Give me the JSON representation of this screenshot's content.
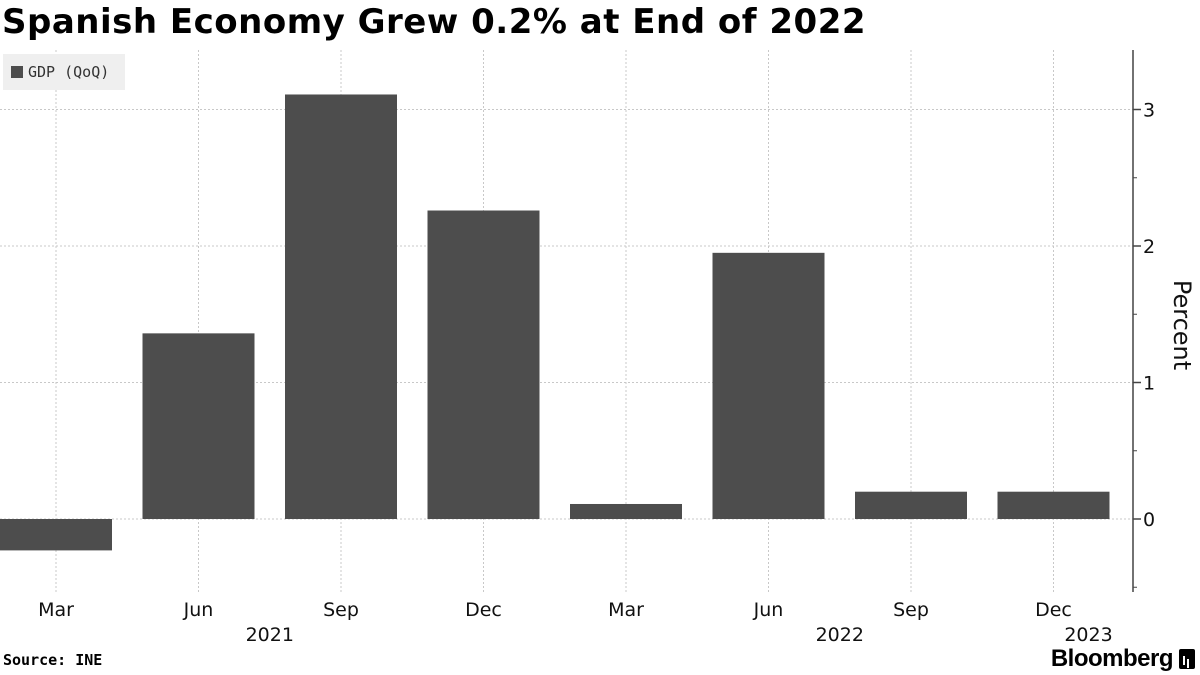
{
  "title": "Spanish Economy Grew 0.2% at End of 2022",
  "legend": {
    "label": "GDP (QoQ)"
  },
  "source": "Source: INE",
  "brand": "Bloomberg",
  "colors": {
    "bar": "#4d4d4d",
    "grid": "#c8c8c8",
    "axis": "#444444",
    "legend_bg": "#efefef"
  },
  "chart_data": {
    "type": "bar",
    "categories": [
      "Mar",
      "Jun",
      "Sep",
      "Dec",
      "Mar",
      "Jun",
      "Sep",
      "Dec"
    ],
    "year_labels": [
      {
        "label": "2021",
        "between": [
          1,
          2
        ]
      },
      {
        "label": "2022",
        "between": [
          5,
          6
        ]
      },
      {
        "label": "2023",
        "at": 7
      }
    ],
    "series": [
      {
        "name": "GDP (QoQ)",
        "values": [
          -0.23,
          1.36,
          3.11,
          2.26,
          0.11,
          1.95,
          0.2,
          0.2
        ]
      }
    ],
    "ylabel": "Percent",
    "yticks": [
      0,
      1,
      2,
      3
    ],
    "ylim": [
      -0.52,
      3.45
    ],
    "grid": true,
    "y_axis_position": "right",
    "legend_position": "top-left"
  }
}
